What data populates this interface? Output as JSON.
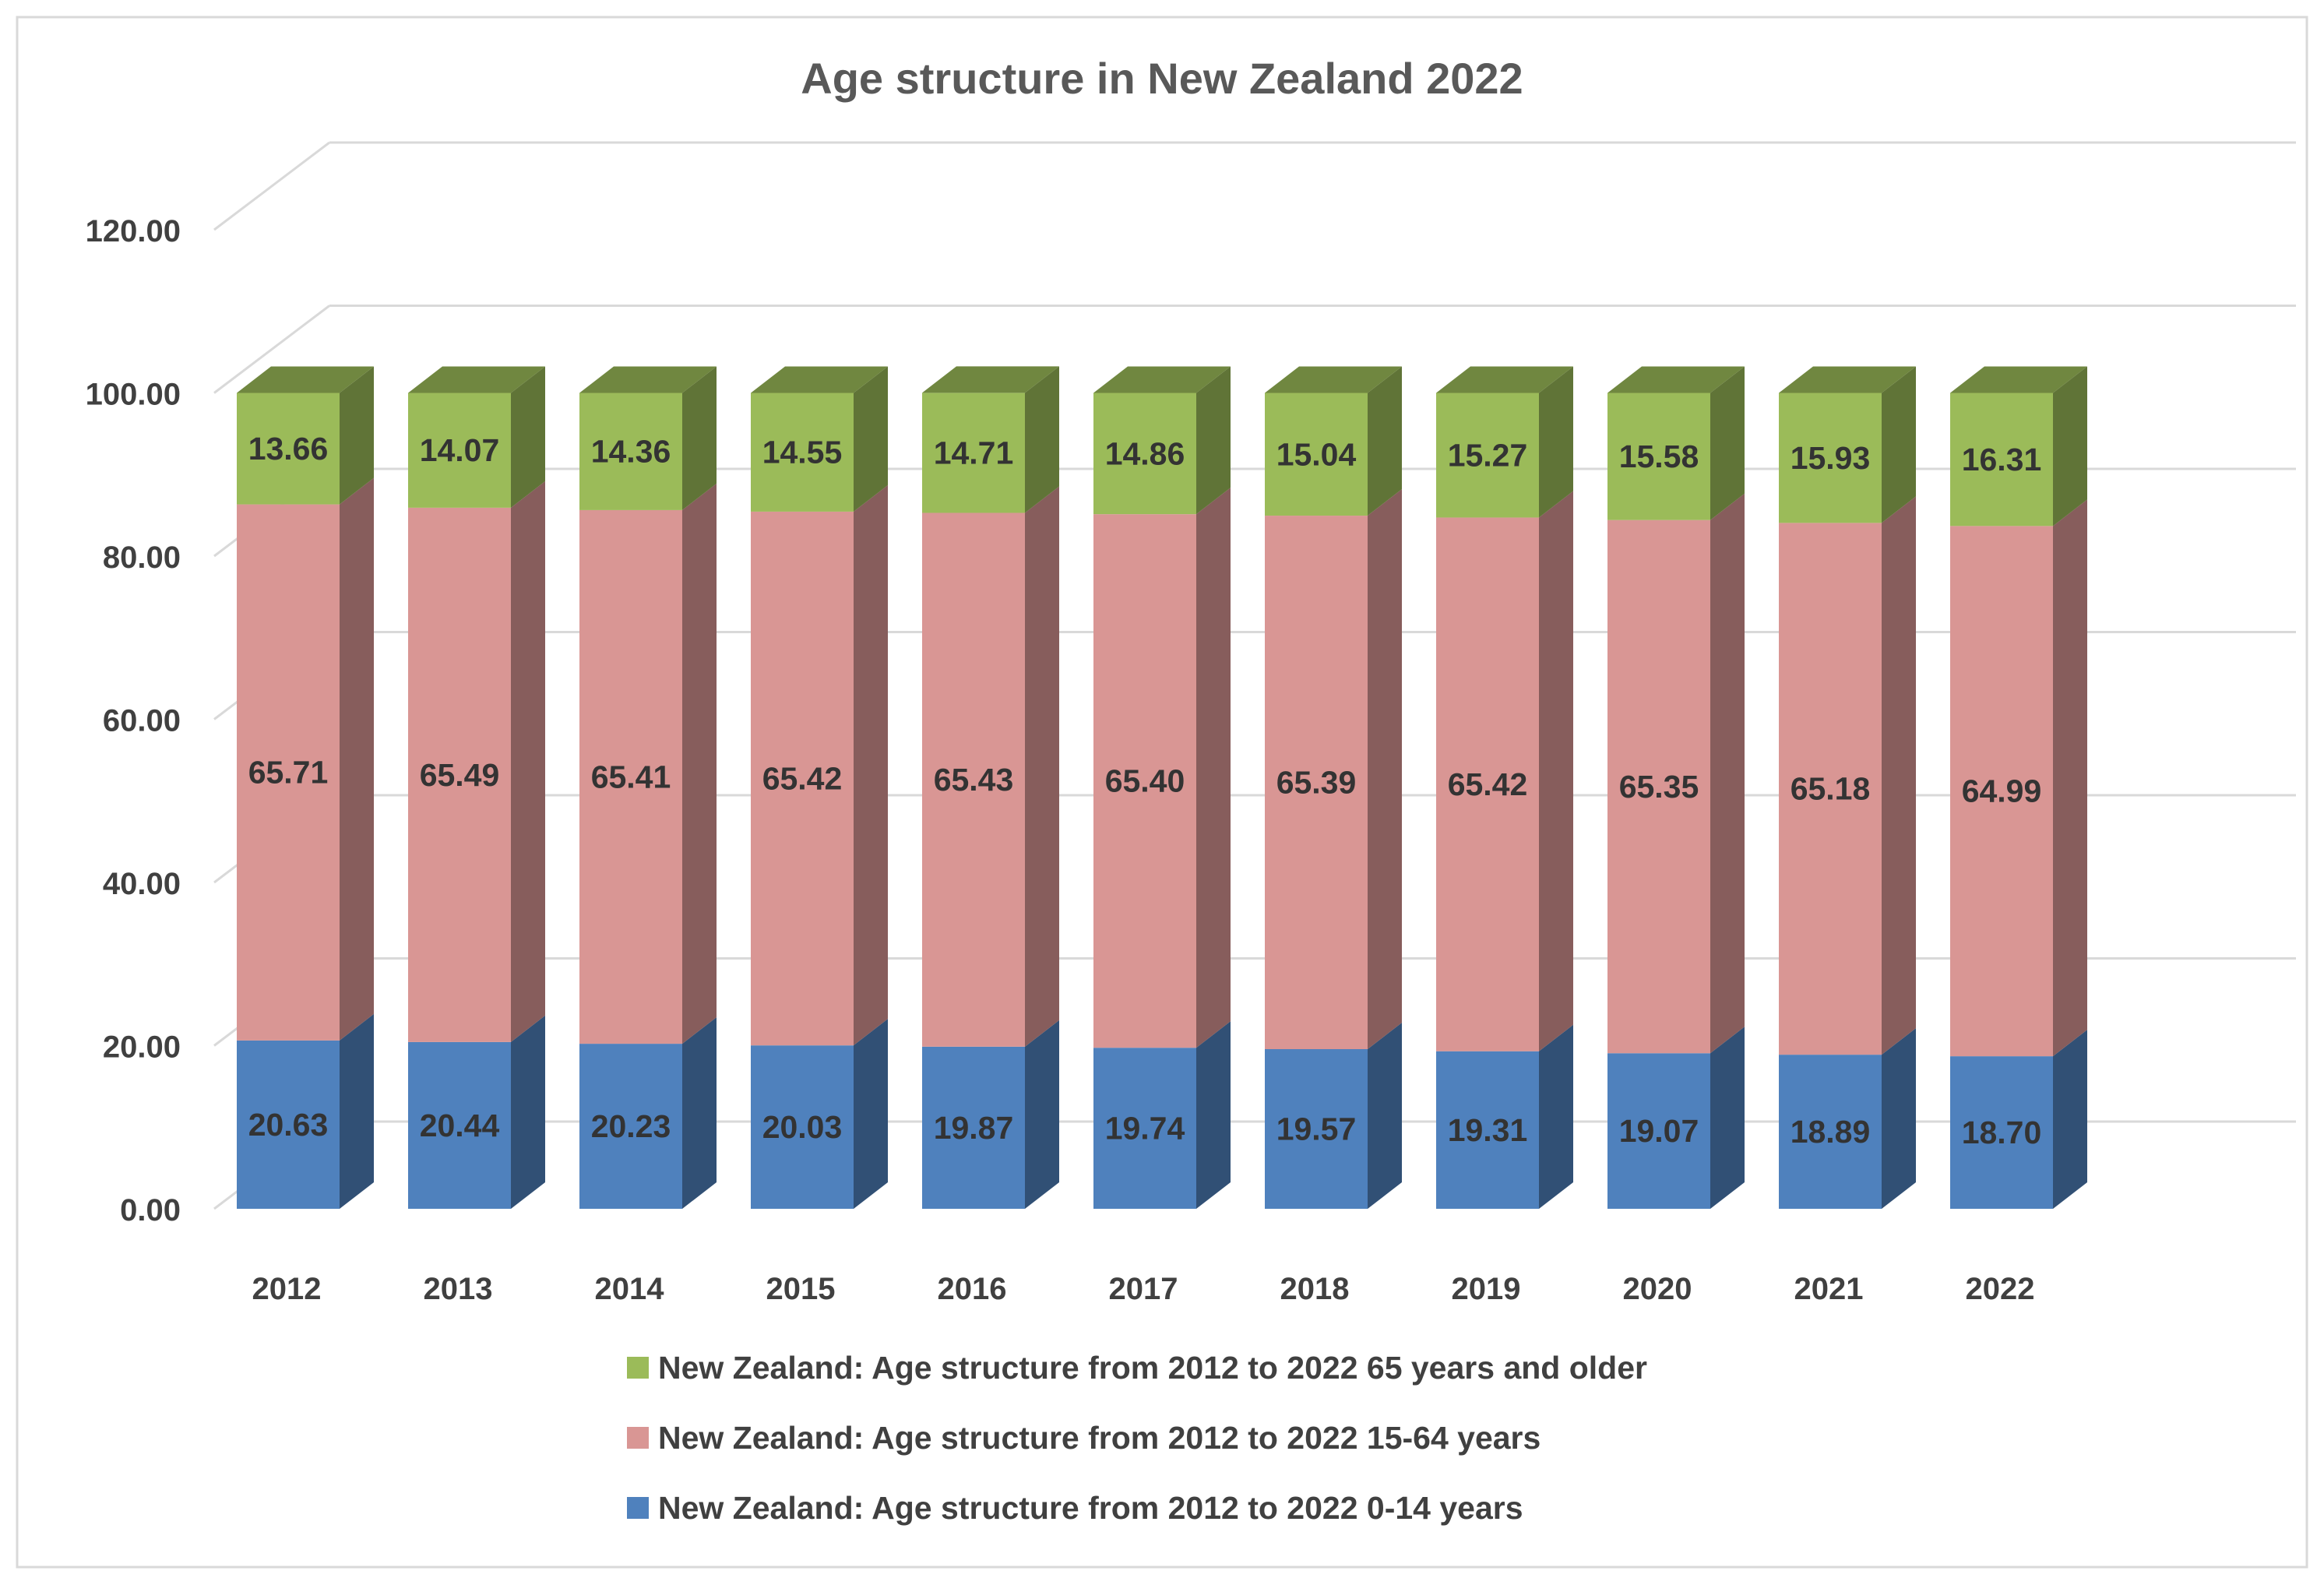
{
  "chart_data": {
    "type": "bar",
    "stacked": true,
    "style": "3d-column",
    "title": "Age structure in New Zealand 2022",
    "categories": [
      "2012",
      "2013",
      "2014",
      "2015",
      "2016",
      "2017",
      "2018",
      "2019",
      "2020",
      "2021",
      "2022"
    ],
    "series": [
      {
        "name": "New Zealand: Age structure from 2012 to 2022 0-14 years",
        "color": "#4F81BD",
        "values": [
          20.63,
          20.44,
          20.23,
          20.03,
          19.87,
          19.74,
          19.57,
          19.31,
          19.07,
          18.89,
          18.7
        ]
      },
      {
        "name": "New Zealand: Age structure from 2012 to 2022 15-64 years",
        "color": "#D99694",
        "values": [
          65.71,
          65.49,
          65.41,
          65.42,
          65.43,
          65.4,
          65.39,
          65.42,
          65.35,
          65.18,
          64.99
        ]
      },
      {
        "name": "New Zealand: Age structure from 2012 to 2022 65 years and older",
        "color": "#9BBB59",
        "values": [
          13.66,
          14.07,
          14.36,
          14.55,
          14.71,
          14.86,
          15.04,
          15.27,
          15.58,
          15.93,
          16.31
        ]
      }
    ],
    "yticks": [
      "0.00",
      "20.00",
      "40.00",
      "60.00",
      "80.00",
      "100.00",
      "120.00"
    ],
    "ylim": [
      0,
      120
    ],
    "grid": true,
    "legend_position": "bottom"
  }
}
